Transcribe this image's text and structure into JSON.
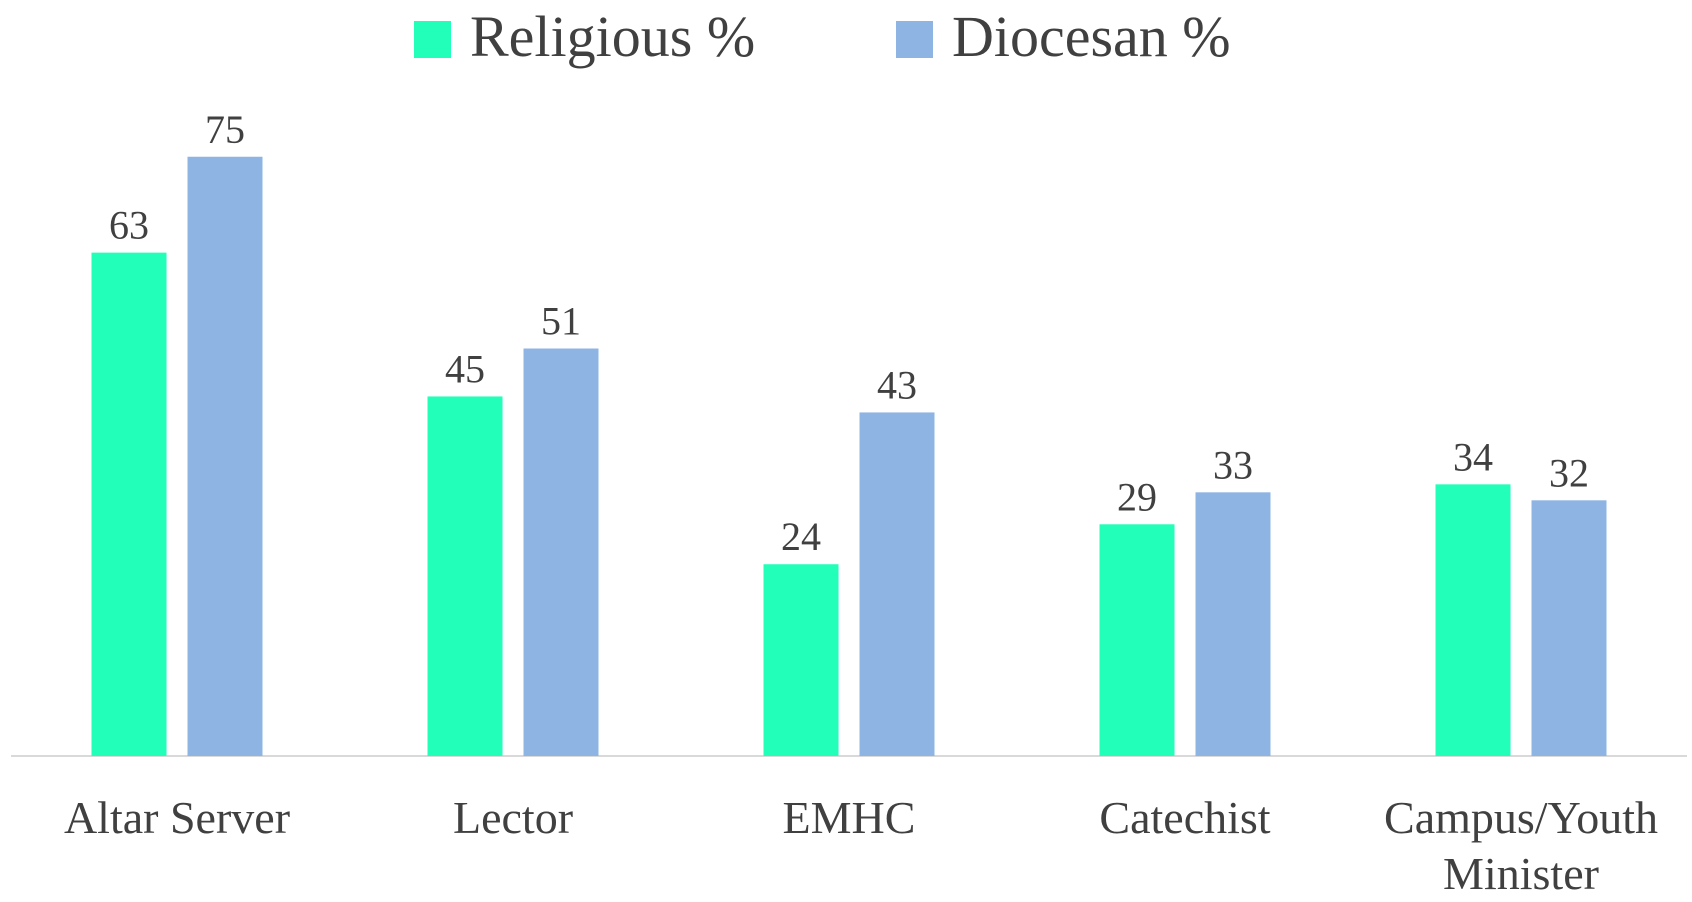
{
  "chart_data": {
    "type": "bar",
    "categories": [
      "Altar Server",
      "Lector",
      "EMHC",
      "Catechist",
      "Campus/Youth Minister"
    ],
    "series": [
      {
        "name": "Religious %",
        "color": "#22ffb8",
        "values": [
          63,
          45,
          24,
          29,
          34
        ]
      },
      {
        "name": "Diocesan %",
        "color": "#8eb4e3",
        "values": [
          75,
          51,
          43,
          33,
          32
        ]
      }
    ],
    "legend": "top"
  }
}
